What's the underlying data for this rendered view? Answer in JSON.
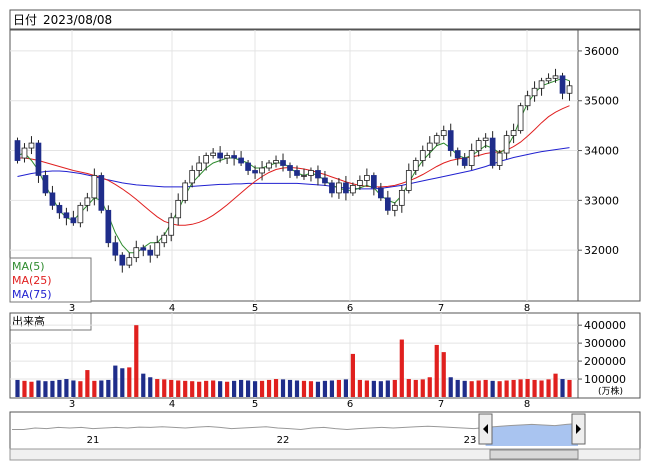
{
  "header": {
    "date_label": "日付",
    "date_value": "2023/08/08"
  },
  "colors": {
    "candle_up": "#ffffff",
    "candle_down": "#1f2d8a",
    "ma5": "#2e8b2e",
    "ma25": "#e02020",
    "ma75": "#2020d0",
    "volume_red": "#e0201e",
    "volume_blue": "#1f2d8a",
    "nav_fill": "#a9c4f0"
  },
  "chart_data": [
    {
      "type": "candlestick",
      "title": "",
      "ylim": [
        31000,
        36400
      ],
      "y_ticks": [
        "36000",
        "35000",
        "34000",
        "33000",
        "32000"
      ],
      "x_ticks": [
        "3",
        "4",
        "5",
        "6",
        "7",
        "8"
      ],
      "legend": [
        {
          "name": "MA(5)",
          "color": "#2e8b2e"
        },
        {
          "name": "MA(25)",
          "color": "#e02020"
        },
        {
          "name": "MA(75)",
          "color": "#2020d0"
        }
      ],
      "series": [
        {
          "name": "MA(5)",
          "values": [
            33900,
            33950,
            33800,
            33600,
            33300,
            33050,
            32800,
            32650,
            32600,
            32750,
            32900,
            33050,
            33000,
            32700,
            32350,
            32100,
            31950,
            31950,
            32050,
            32150,
            32150,
            32300,
            32550,
            32800,
            33100,
            33350,
            33500,
            33650,
            33750,
            33800,
            33850,
            33850,
            33800,
            33750,
            33650,
            33650,
            33700,
            33750,
            33750,
            33650,
            33550,
            33500,
            33550,
            33500,
            33400,
            33300,
            33250,
            33200,
            33200,
            33250,
            33300,
            33250,
            33100,
            33000,
            32950,
            33100,
            33350,
            33600,
            33800,
            33950,
            34100,
            34150,
            34050,
            33900,
            33850,
            33900,
            34000,
            34100,
            34050,
            33950,
            34050,
            34300,
            34650,
            34950,
            35150,
            35300,
            35350,
            35400,
            35450,
            35400
          ]
        },
        {
          "name": "MA(25)",
          "values": [
            33850,
            33850,
            33830,
            33800,
            33760,
            33720,
            33680,
            33640,
            33600,
            33570,
            33540,
            33500,
            33460,
            33400,
            33320,
            33230,
            33130,
            33020,
            32900,
            32780,
            32670,
            32580,
            32530,
            32500,
            32500,
            32520,
            32560,
            32620,
            32700,
            32800,
            32910,
            33030,
            33150,
            33270,
            33380,
            33480,
            33560,
            33620,
            33650,
            33660,
            33650,
            33630,
            33600,
            33560,
            33520,
            33470,
            33420,
            33370,
            33330,
            33300,
            33280,
            33270,
            33270,
            33280,
            33300,
            33340,
            33390,
            33450,
            33520,
            33600,
            33680,
            33750,
            33800,
            33830,
            33850,
            33870,
            33900,
            33940,
            33960,
            33980,
            34010,
            34080,
            34170,
            34290,
            34420,
            34560,
            34680,
            34770,
            34840,
            34900
          ]
        },
        {
          "name": "MA(75)",
          "values": [
            33480,
            33510,
            33540,
            33560,
            33580,
            33590,
            33590,
            33580,
            33560,
            33540,
            33510,
            33480,
            33440,
            33410,
            33380,
            33350,
            33330,
            33310,
            33300,
            33290,
            33280,
            33270,
            33270,
            33270,
            33270,
            33280,
            33290,
            33300,
            33310,
            33320,
            33320,
            33330,
            33330,
            33340,
            33340,
            33340,
            33340,
            33340,
            33340,
            33340,
            33340,
            33330,
            33320,
            33310,
            33300,
            33280,
            33260,
            33250,
            33240,
            33230,
            33230,
            33230,
            33240,
            33260,
            33280,
            33300,
            33330,
            33360,
            33390,
            33420,
            33450,
            33480,
            33510,
            33540,
            33570,
            33600,
            33640,
            33680,
            33730,
            33780,
            33820,
            33860,
            33890,
            33920,
            33950,
            33980,
            34000,
            34020,
            34040,
            34060
          ]
        },
        {
          "name": "candles_close",
          "values": [
            33800,
            34050,
            34150,
            33500,
            33150,
            32900,
            32750,
            32650,
            32550,
            32900,
            33050,
            33500,
            32800,
            32150,
            31900,
            31700,
            31850,
            32050,
            32000,
            31900,
            32150,
            32300,
            32650,
            33000,
            33350,
            33600,
            33750,
            33900,
            33950,
            33850,
            33900,
            33850,
            33750,
            33600,
            33550,
            33650,
            33750,
            33800,
            33700,
            33600,
            33500,
            33500,
            33600,
            33450,
            33350,
            33150,
            33350,
            33150,
            33300,
            33400,
            33500,
            33250,
            33050,
            32800,
            32900,
            33200,
            33600,
            33800,
            34000,
            34150,
            34300,
            34400,
            34000,
            33850,
            33700,
            34000,
            34200,
            34250,
            33700,
            33950,
            34300,
            34400,
            34900,
            35100,
            35250,
            35400,
            35450,
            35500,
            35150,
            35300
          ]
        },
        {
          "name": "candles_open",
          "values": [
            34200,
            33850,
            34050,
            34150,
            33500,
            33150,
            32900,
            32750,
            32650,
            32550,
            32900,
            33050,
            33500,
            32800,
            32150,
            31900,
            31700,
            31850,
            32050,
            32000,
            31900,
            32150,
            32300,
            32650,
            33000,
            33350,
            33600,
            33750,
            33900,
            33950,
            33850,
            33900,
            33850,
            33750,
            33600,
            33550,
            33650,
            33750,
            33800,
            33700,
            33600,
            33500,
            33500,
            33600,
            33450,
            33350,
            33150,
            33350,
            33150,
            33300,
            33400,
            33500,
            33250,
            33050,
            32800,
            32900,
            33200,
            33600,
            33800,
            34000,
            34150,
            34300,
            34400,
            34000,
            33850,
            33700,
            34000,
            34200,
            34250,
            33700,
            33950,
            34300,
            34400,
            34900,
            35100,
            35250,
            35400,
            35450,
            35500,
            35150
          ]
        },
        {
          "name": "volume",
          "values": [
            95000,
            90000,
            85000,
            92000,
            88000,
            90000,
            95000,
            100000,
            92000,
            88000,
            150000,
            90000,
            92000,
            95000,
            175000,
            160000,
            165000,
            400000,
            130000,
            110000,
            100000,
            98000,
            95000,
            92000,
            90000,
            88000,
            85000,
            90000,
            92000,
            88000,
            85000,
            90000,
            95000,
            92000,
            88000,
            90000,
            95000,
            100000,
            98000,
            95000,
            92000,
            90000,
            88000,
            85000,
            90000,
            92000,
            95000,
            98000,
            240000,
            95000,
            92000,
            90000,
            88000,
            92000,
            95000,
            320000,
            100000,
            95000,
            98000,
            110000,
            290000,
            250000,
            110000,
            95000,
            90000,
            88000,
            92000,
            95000,
            90000,
            88000,
            92000,
            95000,
            98000,
            100000,
            95000,
            92000,
            98000,
            130000,
            100000,
            95000
          ]
        }
      ]
    },
    {
      "type": "bar",
      "title": "出来高",
      "ylim": [
        0,
        440000
      ],
      "y_ticks": [
        "400000",
        "300000",
        "200000",
        "100000"
      ],
      "unit": "(万株)",
      "x_ticks": [
        "3",
        "4",
        "5",
        "6",
        "7",
        "8"
      ]
    },
    {
      "type": "area",
      "x_ticks": [
        "21",
        "22",
        "23"
      ],
      "values": [
        0.55,
        0.55,
        0.6,
        0.58,
        0.62,
        0.6,
        0.62,
        0.58,
        0.6,
        0.62,
        0.6,
        0.63,
        0.62,
        0.64,
        0.62,
        0.6,
        0.63,
        0.65,
        0.62,
        0.58,
        0.6,
        0.62,
        0.64,
        0.6,
        0.58,
        0.55,
        0.6,
        0.62,
        0.58,
        0.55,
        0.58,
        0.6,
        0.62,
        0.6,
        0.62,
        0.64,
        0.66,
        0.64,
        0.62,
        0.6,
        0.58,
        0.62,
        0.65,
        0.68,
        0.7,
        0.72,
        0.7,
        0.68,
        0.72,
        0.75
      ]
    }
  ]
}
